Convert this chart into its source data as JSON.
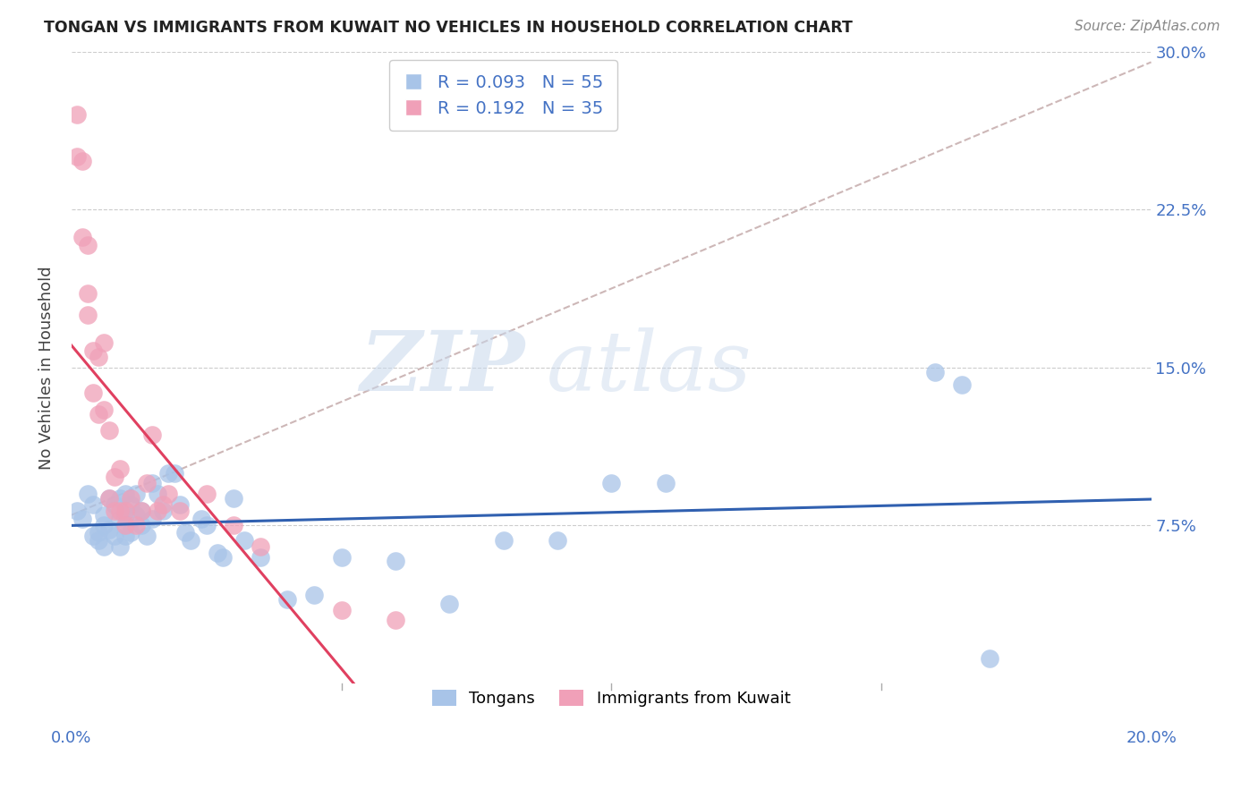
{
  "title": "TONGAN VS IMMIGRANTS FROM KUWAIT NO VEHICLES IN HOUSEHOLD CORRELATION CHART",
  "source": "Source: ZipAtlas.com",
  "ylabel_label": "No Vehicles in Household",
  "xlim": [
    0.0,
    0.2
  ],
  "ylim": [
    0.0,
    0.3
  ],
  "xticks": [
    0.0,
    0.05,
    0.1,
    0.15,
    0.2
  ],
  "yticks": [
    0.0,
    0.075,
    0.15,
    0.225,
    0.3
  ],
  "tongan_R": 0.093,
  "tongan_N": 55,
  "kuwait_R": 0.192,
  "kuwait_N": 35,
  "tongan_color": "#a8c4e8",
  "kuwait_color": "#f0a0b8",
  "tongan_line_color": "#3060b0",
  "kuwait_line_color": "#e04060",
  "dashed_line_color": "#c8b0b0",
  "watermark_zip": "ZIP",
  "watermark_atlas": "atlas",
  "tongan_scatter_x": [
    0.001,
    0.002,
    0.003,
    0.004,
    0.004,
    0.005,
    0.005,
    0.006,
    0.006,
    0.006,
    0.007,
    0.007,
    0.008,
    0.008,
    0.009,
    0.009,
    0.009,
    0.01,
    0.01,
    0.01,
    0.011,
    0.011,
    0.012,
    0.012,
    0.013,
    0.013,
    0.014,
    0.015,
    0.015,
    0.016,
    0.017,
    0.018,
    0.019,
    0.02,
    0.021,
    0.022,
    0.024,
    0.025,
    0.027,
    0.028,
    0.03,
    0.032,
    0.035,
    0.04,
    0.045,
    0.05,
    0.06,
    0.07,
    0.08,
    0.09,
    0.1,
    0.11,
    0.16,
    0.165,
    0.17
  ],
  "tongan_scatter_y": [
    0.082,
    0.078,
    0.09,
    0.085,
    0.07,
    0.072,
    0.068,
    0.08,
    0.075,
    0.065,
    0.088,
    0.073,
    0.085,
    0.07,
    0.088,
    0.078,
    0.065,
    0.09,
    0.08,
    0.07,
    0.085,
    0.072,
    0.09,
    0.08,
    0.082,
    0.075,
    0.07,
    0.095,
    0.078,
    0.09,
    0.082,
    0.1,
    0.1,
    0.085,
    0.072,
    0.068,
    0.078,
    0.075,
    0.062,
    0.06,
    0.088,
    0.068,
    0.06,
    0.04,
    0.042,
    0.06,
    0.058,
    0.038,
    0.068,
    0.068,
    0.095,
    0.095,
    0.148,
    0.142,
    0.012
  ],
  "kuwait_scatter_x": [
    0.001,
    0.001,
    0.002,
    0.002,
    0.003,
    0.003,
    0.003,
    0.004,
    0.004,
    0.005,
    0.005,
    0.006,
    0.006,
    0.007,
    0.007,
    0.008,
    0.008,
    0.009,
    0.009,
    0.01,
    0.01,
    0.011,
    0.012,
    0.013,
    0.014,
    0.015,
    0.016,
    0.017,
    0.018,
    0.02,
    0.025,
    0.03,
    0.035,
    0.05,
    0.06
  ],
  "kuwait_scatter_y": [
    0.27,
    0.25,
    0.248,
    0.212,
    0.208,
    0.185,
    0.175,
    0.158,
    0.138,
    0.155,
    0.128,
    0.162,
    0.13,
    0.12,
    0.088,
    0.098,
    0.082,
    0.102,
    0.082,
    0.082,
    0.075,
    0.088,
    0.075,
    0.082,
    0.095,
    0.118,
    0.082,
    0.085,
    0.09,
    0.082,
    0.09,
    0.075,
    0.065,
    0.035,
    0.03
  ]
}
